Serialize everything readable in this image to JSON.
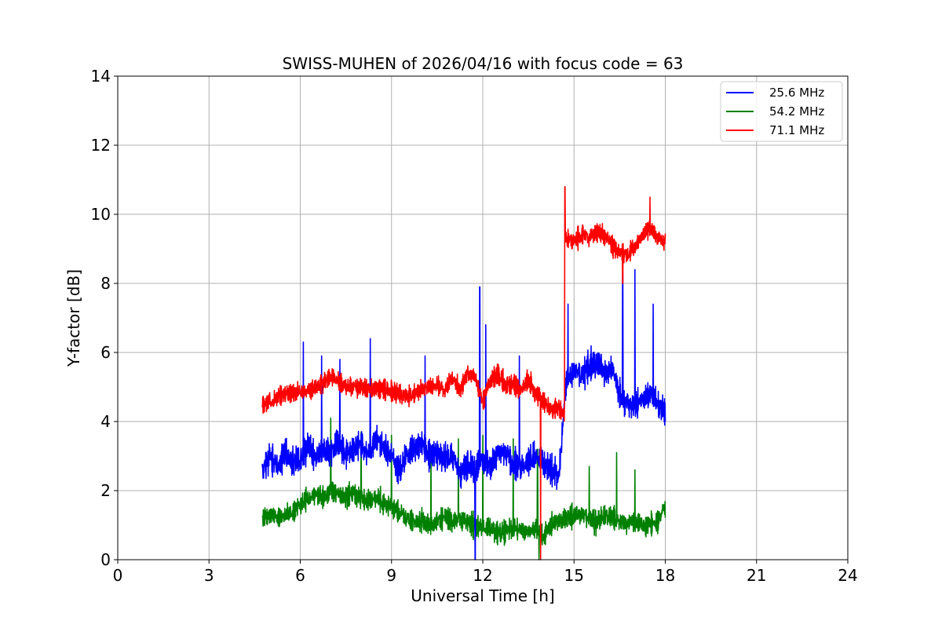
{
  "chart_data": {
    "type": "line",
    "title": "SWISS-MUHEN of 2026/04/16 with focus code = 63",
    "xlabel": "Universal Time [h]",
    "ylabel": "Y-factor [dB]",
    "xlim": [
      0,
      24
    ],
    "ylim": [
      0,
      14
    ],
    "xticks": [
      "0",
      "3",
      "6",
      "9",
      "12",
      "15",
      "18",
      "21",
      "24"
    ],
    "yticks": [
      "0",
      "2",
      "4",
      "6",
      "8",
      "10",
      "12",
      "14"
    ],
    "grid": true,
    "legend_position": "top-right",
    "series": [
      {
        "name": "25.6 MHz",
        "color": "#0000ff",
        "x": [
          4.75,
          5.0,
          5.25,
          5.5,
          5.75,
          6.0,
          6.25,
          6.5,
          6.75,
          7.0,
          7.25,
          7.5,
          7.75,
          8.0,
          8.25,
          8.5,
          8.75,
          9.0,
          9.25,
          9.5,
          9.75,
          10.0,
          10.25,
          10.5,
          10.75,
          11.0,
          11.25,
          11.5,
          11.75,
          12.0,
          12.25,
          12.5,
          12.75,
          13.0,
          13.25,
          13.5,
          13.75,
          14.0,
          14.25,
          14.5,
          14.75,
          15.0,
          15.25,
          15.5,
          15.75,
          16.0,
          16.25,
          16.5,
          16.75,
          17.0,
          17.25,
          17.5,
          17.75,
          18.0
        ],
        "values": [
          2.6,
          3.0,
          2.7,
          3.1,
          2.8,
          2.9,
          3.3,
          3.0,
          3.2,
          3.1,
          3.4,
          3.0,
          3.2,
          3.3,
          3.1,
          3.5,
          3.2,
          3.0,
          2.6,
          3.0,
          3.2,
          3.3,
          3.0,
          3.1,
          2.9,
          3.0,
          2.5,
          2.8,
          2.6,
          2.9,
          2.7,
          3.0,
          3.1,
          2.8,
          2.7,
          2.9,
          3.0,
          2.8,
          2.6,
          2.4,
          5.2,
          5.5,
          5.3,
          5.6,
          5.7,
          5.4,
          5.5,
          4.8,
          4.5,
          4.4,
          4.6,
          4.9,
          4.5,
          4.3
        ],
        "spikes": [
          [
            6.1,
            6.3
          ],
          [
            6.7,
            5.9
          ],
          [
            7.3,
            5.8
          ],
          [
            8.3,
            6.4
          ],
          [
            10.1,
            5.9
          ],
          [
            11.9,
            7.9
          ],
          [
            12.1,
            6.8
          ],
          [
            13.2,
            5.9
          ],
          [
            14.8,
            7.4
          ],
          [
            16.6,
            8.3
          ],
          [
            17.0,
            8.4
          ],
          [
            17.6,
            7.4
          ],
          [
            11.75,
            0.0
          ]
        ]
      },
      {
        "name": "54.2 MHz",
        "color": "#008000",
        "x": [
          4.75,
          5.0,
          5.25,
          5.5,
          5.75,
          6.0,
          6.25,
          6.5,
          6.75,
          7.0,
          7.25,
          7.5,
          7.75,
          8.0,
          8.25,
          8.5,
          8.75,
          9.0,
          9.25,
          9.5,
          9.75,
          10.0,
          10.25,
          10.5,
          10.75,
          11.0,
          11.25,
          11.5,
          11.75,
          12.0,
          12.25,
          12.5,
          12.75,
          13.0,
          13.25,
          13.5,
          13.75,
          14.0,
          14.25,
          14.5,
          14.75,
          15.0,
          15.25,
          15.5,
          15.75,
          16.0,
          16.25,
          16.5,
          16.75,
          17.0,
          17.25,
          17.5,
          17.75,
          18.0
        ],
        "values": [
          1.2,
          1.3,
          1.2,
          1.3,
          1.4,
          1.6,
          1.8,
          1.9,
          1.8,
          2.0,
          1.9,
          1.8,
          1.9,
          1.8,
          1.7,
          1.8,
          1.6,
          1.5,
          1.4,
          1.2,
          1.1,
          1.1,
          1.0,
          1.1,
          1.2,
          1.1,
          1.2,
          1.1,
          1.0,
          0.9,
          0.9,
          0.8,
          0.8,
          0.9,
          0.9,
          0.8,
          0.9,
          0.7,
          1.0,
          1.1,
          1.2,
          1.3,
          1.3,
          1.2,
          1.1,
          1.3,
          1.2,
          1.1,
          1.0,
          1.1,
          1.0,
          1.0,
          1.1,
          1.5
        ],
        "spikes": [
          [
            7.0,
            4.1
          ],
          [
            8.0,
            3.7
          ],
          [
            9.0,
            3.6
          ],
          [
            10.3,
            3.3
          ],
          [
            11.2,
            3.5
          ],
          [
            12.0,
            3.6
          ],
          [
            13.0,
            3.5
          ],
          [
            13.8,
            3.2
          ],
          [
            15.5,
            2.7
          ],
          [
            16.4,
            3.1
          ],
          [
            17.0,
            2.6
          ],
          [
            13.85,
            0.0
          ]
        ]
      },
      {
        "name": "71.1 MHz",
        "color": "#ff0000",
        "x": [
          4.75,
          5.0,
          5.25,
          5.5,
          5.75,
          6.0,
          6.25,
          6.5,
          6.75,
          7.0,
          7.25,
          7.5,
          7.75,
          8.0,
          8.25,
          8.5,
          8.75,
          9.0,
          9.25,
          9.5,
          9.75,
          10.0,
          10.25,
          10.5,
          10.75,
          11.0,
          11.25,
          11.5,
          11.75,
          12.0,
          12.25,
          12.5,
          12.75,
          13.0,
          13.25,
          13.5,
          13.75,
          14.0,
          14.25,
          14.5,
          14.7,
          14.75,
          15.0,
          15.25,
          15.5,
          15.75,
          16.0,
          16.25,
          16.5,
          16.75,
          17.0,
          17.25,
          17.5,
          17.75,
          18.0
        ],
        "values": [
          4.5,
          4.6,
          4.7,
          4.8,
          4.8,
          4.9,
          4.9,
          5.0,
          5.1,
          5.3,
          5.2,
          5.0,
          5.0,
          5.0,
          4.9,
          5.0,
          4.9,
          4.9,
          4.8,
          4.7,
          4.8,
          4.9,
          5.0,
          5.1,
          4.9,
          5.3,
          4.9,
          5.4,
          5.3,
          4.6,
          5.2,
          5.4,
          5.0,
          5.1,
          4.9,
          5.2,
          4.8,
          4.6,
          4.3,
          4.4,
          4.2,
          9.3,
          9.2,
          9.4,
          9.3,
          9.5,
          9.4,
          9.1,
          8.9,
          8.8,
          9.1,
          9.4,
          9.6,
          9.3,
          9.2
        ],
        "spikes": [
          [
            14.7,
            10.8
          ],
          [
            16.6,
            8.0
          ],
          [
            17.5,
            10.5
          ],
          [
            13.9,
            0.0
          ]
        ]
      }
    ]
  }
}
